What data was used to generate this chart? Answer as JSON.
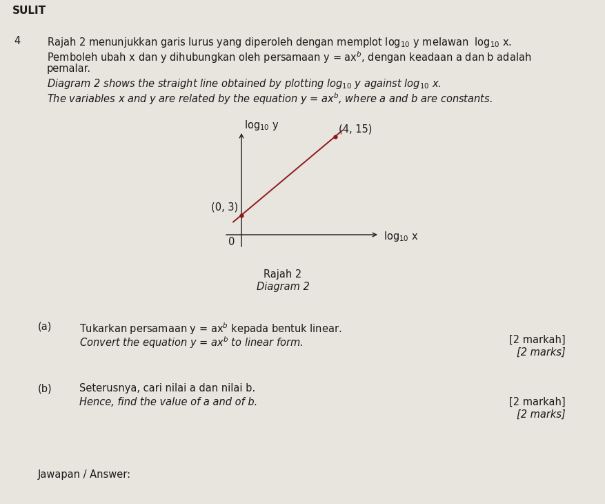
{
  "background_color": "#e8e4de",
  "text_color": "#1a1a1a",
  "line_color": "#8B1a1a",
  "axis_color": "#1a1a1a",
  "title_header": "SULIT",
  "question_number": "4",
  "malay_line1": "Rajah 2 menunjukkan garis lurus yang diperoleh dengan memplot log$_{10}$ y melawan  log$_{10}$ x.",
  "malay_line2": "Pemboleh ubah x dan y dihubungkan oleh persamaan y = ax$^b$, dengan keadaan a dan b adalah",
  "malay_line3": "pemalar.",
  "eng_line1": "Diagram 2 shows the straight line obtained by plotting log$_{10}$ y against log$_{10}$ x.",
  "eng_line2": "The variables x and y are related by the equation y = ax$^b$, where a and b are constants.",
  "diagram_title_malay": "Rajah 2",
  "diagram_title_english": "Diagram 2",
  "point1_label": "(0, 3)",
  "point2_label": "(4, 15)",
  "xaxis_label": "log$_{10}$ x",
  "yaxis_label": "log$_{10}$ y",
  "origin_label": "0",
  "part_a_label": "(a)",
  "part_a_malay": "Tukarkan persamaan y = ax$^b$ kepada bentuk linear.",
  "part_a_english": "Convert the equation y = ax$^b$ to linear form.",
  "part_a_marks_malay": "[2 markah]",
  "part_a_marks_english": "[2 marks]",
  "part_b_label": "(b)",
  "part_b_malay": "Seterusnya, cari nilai a dan nilai b.",
  "part_b_english": "Hence, find the value of a and of b.",
  "part_b_marks_malay": "[2 markah]",
  "part_b_marks_english": "[2 marks]",
  "answer_label": "Jawapan / Answer:",
  "font_size": 10.5
}
